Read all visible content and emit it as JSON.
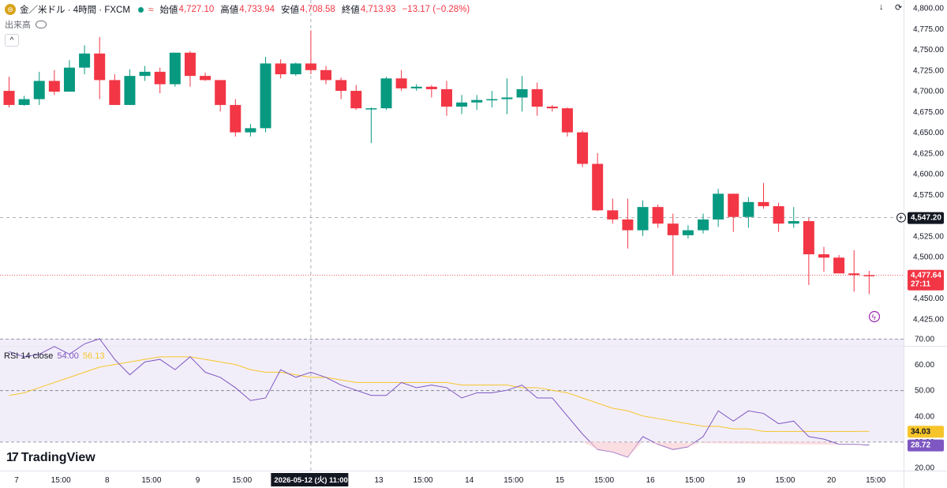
{
  "header": {
    "symbol_icon": "gold-coin-icon",
    "title": "金／米ドル · 4時間 · FXCM",
    "status_icon": "market-open-dot-icon",
    "approx_icon": "approx-icon",
    "open_label": "始値",
    "open_value": "4,727.10",
    "high_label": "高値",
    "high_value": "4,733.94",
    "low_label": "安値",
    "low_value": "4,708.58",
    "close_label": "終値",
    "close_value": "4,713.93",
    "change_value": "−13.17 (−0.28%)",
    "volume_label": "出来高",
    "collapse_symbol": "^",
    "download_symbol": "↓",
    "refresh_symbol": "⟳"
  },
  "colors": {
    "up": "#089981",
    "down": "#f23645",
    "rsi": "#7e57c2",
    "rsi_ma": "#f7c52b",
    "rsi_band": "#ede7f6"
  },
  "rsi_header": {
    "name": "RSI 14 close",
    "value1": "54.00",
    "value2": "56.13"
  },
  "logo": {
    "text": "TradingView",
    "icon": "tradingview-logo-icon"
  },
  "chart_data": {
    "type": "candlestick",
    "price_axis": {
      "range": [
        4420,
        4810
      ],
      "ticks": [
        4425,
        4450,
        4475,
        4500,
        4525,
        4550,
        4575,
        4600,
        4625,
        4650,
        4675,
        4700,
        4725,
        4750,
        4775,
        4800
      ],
      "tick_labels": [
        "4,425.00",
        "4,450.00",
        "4,475.00",
        "4,500.00",
        "4,525.00",
        "4,550.00",
        "4,575.00",
        "4,600.00",
        "4,625.00",
        "4,650.00",
        "4,675.00",
        "4,700.00",
        "4,725.00",
        "4,750.00",
        "4,775.00",
        "4,800.00"
      ],
      "crosshair_price": 4547.2,
      "crosshair_label": "4,547.20",
      "last_price": 4477.64,
      "last_label": "4,477.64",
      "countdown": "27:11"
    },
    "x_axis": {
      "labels": [
        "7",
        "15:00",
        "8",
        "15:00",
        "9",
        "15:00",
        "2026-05-12 (火)  11:00",
        "13",
        "15:00",
        "14",
        "15:00",
        "15",
        "15:00",
        "16",
        "15:00",
        "19",
        "15:00",
        "20",
        "15:00"
      ],
      "label_bar_index": [
        0.5,
        3.5,
        6.5,
        9.5,
        12.5,
        15.5,
        19.5,
        24.5,
        27.5,
        30.5,
        33.5,
        36.5,
        39.5,
        42.5,
        45.5,
        48.5,
        51.5,
        54.5,
        57.5
      ],
      "crosshair_index": 20
    },
    "candles": [
      {
        "o": 4700,
        "h": 4717,
        "l": 4680,
        "c": 4683
      },
      {
        "o": 4683,
        "h": 4694,
        "l": 4682,
        "c": 4690
      },
      {
        "o": 4690,
        "h": 4723,
        "l": 4683,
        "c": 4712
      },
      {
        "o": 4712,
        "h": 4725,
        "l": 4695,
        "c": 4699
      },
      {
        "o": 4699,
        "h": 4737,
        "l": 4699,
        "c": 4728
      },
      {
        "o": 4728,
        "h": 4755,
        "l": 4720,
        "c": 4745
      },
      {
        "o": 4745,
        "h": 4765,
        "l": 4690,
        "c": 4713
      },
      {
        "o": 4713,
        "h": 4720,
        "l": 4683,
        "c": 4683
      },
      {
        "o": 4683,
        "h": 4726,
        "l": 4683,
        "c": 4718
      },
      {
        "o": 4718,
        "h": 4730,
        "l": 4712,
        "c": 4723
      },
      {
        "o": 4723,
        "h": 4728,
        "l": 4697,
        "c": 4708
      },
      {
        "o": 4708,
        "h": 4746,
        "l": 4705,
        "c": 4746
      },
      {
        "o": 4746,
        "h": 4748,
        "l": 4705,
        "c": 4718
      },
      {
        "o": 4718,
        "h": 4722,
        "l": 4712,
        "c": 4713
      },
      {
        "o": 4713,
        "h": 4713,
        "l": 4675,
        "c": 4683
      },
      {
        "o": 4683,
        "h": 4690,
        "l": 4645,
        "c": 4650
      },
      {
        "o": 4650,
        "h": 4660,
        "l": 4645,
        "c": 4655
      },
      {
        "o": 4655,
        "h": 4741,
        "l": 4650,
        "c": 4733
      },
      {
        "o": 4733,
        "h": 4738,
        "l": 4715,
        "c": 4720
      },
      {
        "o": 4720,
        "h": 4734,
        "l": 4718,
        "c": 4733
      },
      {
        "o": 4733,
        "h": 4773,
        "l": 4720,
        "c": 4725
      },
      {
        "o": 4725,
        "h": 4730,
        "l": 4708,
        "c": 4713
      },
      {
        "o": 4713,
        "h": 4716,
        "l": 4690,
        "c": 4700
      },
      {
        "o": 4700,
        "h": 4707,
        "l": 4677,
        "c": 4679
      },
      {
        "o": 4679,
        "h": 4680,
        "l": 4637,
        "c": 4679
      },
      {
        "o": 4679,
        "h": 4717,
        "l": 4677,
        "c": 4715
      },
      {
        "o": 4715,
        "h": 4725,
        "l": 4700,
        "c": 4703
      },
      {
        "o": 4703,
        "h": 4708,
        "l": 4700,
        "c": 4705
      },
      {
        "o": 4705,
        "h": 4707,
        "l": 4692,
        "c": 4702
      },
      {
        "o": 4702,
        "h": 4712,
        "l": 4670,
        "c": 4681
      },
      {
        "o": 4681,
        "h": 4695,
        "l": 4672,
        "c": 4686
      },
      {
        "o": 4686,
        "h": 4695,
        "l": 4677,
        "c": 4689
      },
      {
        "o": 4689,
        "h": 4700,
        "l": 4680,
        "c": 4690
      },
      {
        "o": 4690,
        "h": 4715,
        "l": 4672,
        "c": 4692
      },
      {
        "o": 4692,
        "h": 4718,
        "l": 4675,
        "c": 4702
      },
      {
        "o": 4702,
        "h": 4710,
        "l": 4670,
        "c": 4681
      },
      {
        "o": 4681,
        "h": 4683,
        "l": 4675,
        "c": 4679
      },
      {
        "o": 4679,
        "h": 4680,
        "l": 4645,
        "c": 4650
      },
      {
        "o": 4650,
        "h": 4652,
        "l": 4608,
        "c": 4612
      },
      {
        "o": 4612,
        "h": 4625,
        "l": 4555,
        "c": 4556
      },
      {
        "o": 4556,
        "h": 4570,
        "l": 4540,
        "c": 4545
      },
      {
        "o": 4545,
        "h": 4570,
        "l": 4510,
        "c": 4532
      },
      {
        "o": 4532,
        "h": 4568,
        "l": 4525,
        "c": 4560
      },
      {
        "o": 4560,
        "h": 4563,
        "l": 4535,
        "c": 4540
      },
      {
        "o": 4540,
        "h": 4552,
        "l": 4478,
        "c": 4526
      },
      {
        "o": 4526,
        "h": 4538,
        "l": 4522,
        "c": 4532
      },
      {
        "o": 4532,
        "h": 4552,
        "l": 4528,
        "c": 4545
      },
      {
        "o": 4545,
        "h": 4582,
        "l": 4536,
        "c": 4576
      },
      {
        "o": 4576,
        "h": 4576,
        "l": 4530,
        "c": 4548
      },
      {
        "o": 4548,
        "h": 4572,
        "l": 4535,
        "c": 4566
      },
      {
        "o": 4566,
        "h": 4589,
        "l": 4558,
        "c": 4561
      },
      {
        "o": 4561,
        "h": 4565,
        "l": 4530,
        "c": 4540
      },
      {
        "o": 4540,
        "h": 4560,
        "l": 4535,
        "c": 4543
      },
      {
        "o": 4543,
        "h": 4547,
        "l": 4466,
        "c": 4503
      },
      {
        "o": 4503,
        "h": 4512,
        "l": 4482,
        "c": 4499
      },
      {
        "o": 4499,
        "h": 4502,
        "l": 4480,
        "c": 4480
      },
      {
        "o": 4480,
        "h": 4508,
        "l": 4458,
        "c": 4478
      },
      {
        "o": 4478,
        "h": 4483,
        "l": 4455,
        "c": 4477.64
      }
    ],
    "rsi": {
      "name": "RSI 14 close",
      "range": [
        20,
        72
      ],
      "ticks": [
        20,
        30,
        40,
        50,
        60,
        70
      ],
      "tick_labels": [
        "20.00",
        "30.00",
        "40.00",
        "50.00",
        "60.00",
        "70.00"
      ],
      "bands": [
        30,
        50,
        70
      ],
      "rsi_values": [
        65,
        63,
        64,
        67,
        64,
        68,
        70,
        62,
        56,
        61,
        62,
        58,
        63,
        57,
        55,
        51,
        46,
        47,
        58,
        55,
        57,
        55,
        52,
        50,
        48,
        48,
        53,
        51,
        52,
        51,
        47,
        49,
        49,
        50,
        52,
        47,
        47,
        40,
        33,
        27,
        26,
        24,
        32,
        29,
        27,
        28,
        32,
        42,
        38,
        42,
        41,
        37,
        38,
        32,
        31,
        29,
        29,
        28.72
      ],
      "ma_values": [
        48,
        49,
        51,
        53,
        55,
        57,
        59,
        60,
        61,
        62,
        63,
        63,
        63,
        62,
        61,
        60,
        58,
        57,
        57,
        56,
        55,
        55,
        54,
        53,
        53,
        53,
        53,
        53,
        53,
        53,
        52,
        52,
        52,
        52,
        51,
        51,
        50,
        49,
        47,
        45,
        43,
        42,
        40,
        39,
        38,
        37,
        36,
        36,
        35,
        35,
        34,
        34,
        34,
        34,
        34,
        34,
        34,
        34.03
      ],
      "label1": "34.03",
      "label2": "28.72"
    }
  }
}
